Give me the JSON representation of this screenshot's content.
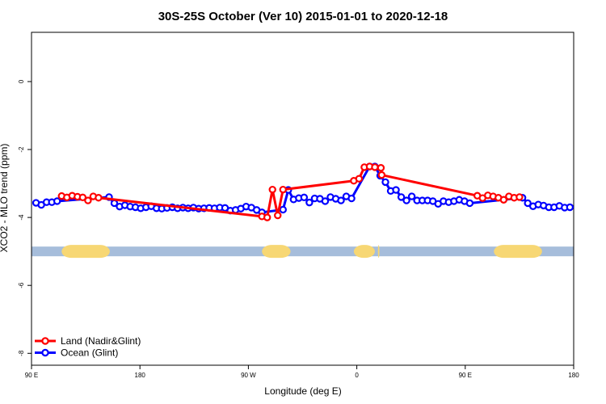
{
  "chart_data": {
    "type": "line",
    "title": "30S-25S October (Ver 10)   2015-01-01 to 2020-12-18",
    "xlabel": "Longitude (deg E)",
    "ylabel": "XCO2 - MLO trend (ppm)",
    "xlim": [
      90,
      450
    ],
    "ylim": [
      -8.35,
      1.45
    ],
    "x_ticks": [
      {
        "value": 90,
        "label": "90 E"
      },
      {
        "value": 162,
        "label": "180"
      },
      {
        "value": 234,
        "label": "90 W"
      },
      {
        "value": 306,
        "label": "0"
      },
      {
        "value": 378,
        "label": "90 E"
      },
      {
        "value": 450,
        "label": "180"
      }
    ],
    "y_ticks": [
      {
        "value": 0,
        "label": "0"
      },
      {
        "value": -2,
        "label": "-2"
      },
      {
        "value": -4,
        "label": "-4"
      },
      {
        "value": -6,
        "label": "-6"
      },
      {
        "value": -8,
        "label": "-8"
      }
    ],
    "band": {
      "y": -5.0,
      "land_color": "#f7d774",
      "ocean_color": "#a6bddb",
      "land_segments": [
        [
          110,
          142
        ],
        [
          243,
          262
        ],
        [
          304,
          318
        ],
        [
          320,
          321
        ],
        [
          397,
          429
        ]
      ]
    },
    "series": [
      {
        "name": "Land (Nadir&Glint)",
        "color": "#ff0000",
        "x": [
          110,
          113.5,
          117,
          120.5,
          124,
          127.5,
          131,
          134.5,
          243,
          246.5,
          250,
          253.5,
          257,
          304,
          307.5,
          311,
          314.5,
          318,
          322,
          322.5,
          386,
          389.5,
          393,
          396.5,
          400,
          403.5,
          407,
          410.5,
          414
        ],
        "y": [
          -3.37,
          -3.41,
          -3.36,
          -3.39,
          -3.41,
          -3.5,
          -3.38,
          -3.42,
          -3.97,
          -4.0,
          -3.18,
          -3.94,
          -3.18,
          -2.92,
          -2.86,
          -2.52,
          -2.5,
          -2.52,
          -2.54,
          -2.75,
          -3.36,
          -3.43,
          -3.35,
          -3.38,
          -3.42,
          -3.48,
          -3.38,
          -3.42,
          -3.4
        ]
      },
      {
        "name": "Ocean (Glint)",
        "color": "#0000ff",
        "x": [
          93,
          96.5,
          100,
          103.5,
          107,
          141.5,
          145,
          148.5,
          152,
          155.5,
          159,
          162.5,
          166,
          169.5,
          173,
          176.5,
          180,
          183.5,
          187,
          190.5,
          194,
          197.5,
          201,
          204.5,
          208,
          211.5,
          215,
          218.5,
          222,
          225.5,
          229,
          232.5,
          236,
          239.5,
          243,
          257,
          260.5,
          264,
          267.5,
          271,
          274.5,
          278,
          281.5,
          285,
          288.5,
          292,
          295.5,
          299,
          302.5,
          314.5,
          318,
          321.5,
          325,
          328.5,
          332,
          335.5,
          339,
          342.5,
          346,
          349.5,
          353,
          356.5,
          360,
          363.5,
          367,
          370.5,
          374,
          377.5,
          381,
          416,
          419.5,
          423,
          426.5,
          430,
          433.5,
          437,
          440.5,
          444,
          447.5
        ],
        "y": [
          -3.57,
          -3.63,
          -3.55,
          -3.55,
          -3.52,
          -3.4,
          -3.58,
          -3.68,
          -3.64,
          -3.68,
          -3.7,
          -3.73,
          -3.7,
          -3.67,
          -3.73,
          -3.74,
          -3.72,
          -3.7,
          -3.73,
          -3.71,
          -3.73,
          -3.71,
          -3.74,
          -3.73,
          -3.72,
          -3.73,
          -3.71,
          -3.72,
          -3.8,
          -3.78,
          -3.74,
          -3.68,
          -3.71,
          -3.78,
          -3.85,
          -3.77,
          -3.19,
          -3.47,
          -3.43,
          -3.41,
          -3.56,
          -3.44,
          -3.45,
          -3.52,
          -3.4,
          -3.45,
          -3.5,
          -3.38,
          -3.44,
          -2.5,
          -2.5,
          -2.77,
          -2.96,
          -3.22,
          -3.19,
          -3.4,
          -3.5,
          -3.38,
          -3.5,
          -3.5,
          -3.5,
          -3.52,
          -3.6,
          -3.52,
          -3.55,
          -3.52,
          -3.48,
          -3.52,
          -3.58,
          -3.42,
          -3.58,
          -3.67,
          -3.62,
          -3.65,
          -3.7,
          -3.7,
          -3.66,
          -3.71,
          -3.7
        ]
      }
    ],
    "legend": {
      "placement": "bottom-left"
    }
  }
}
